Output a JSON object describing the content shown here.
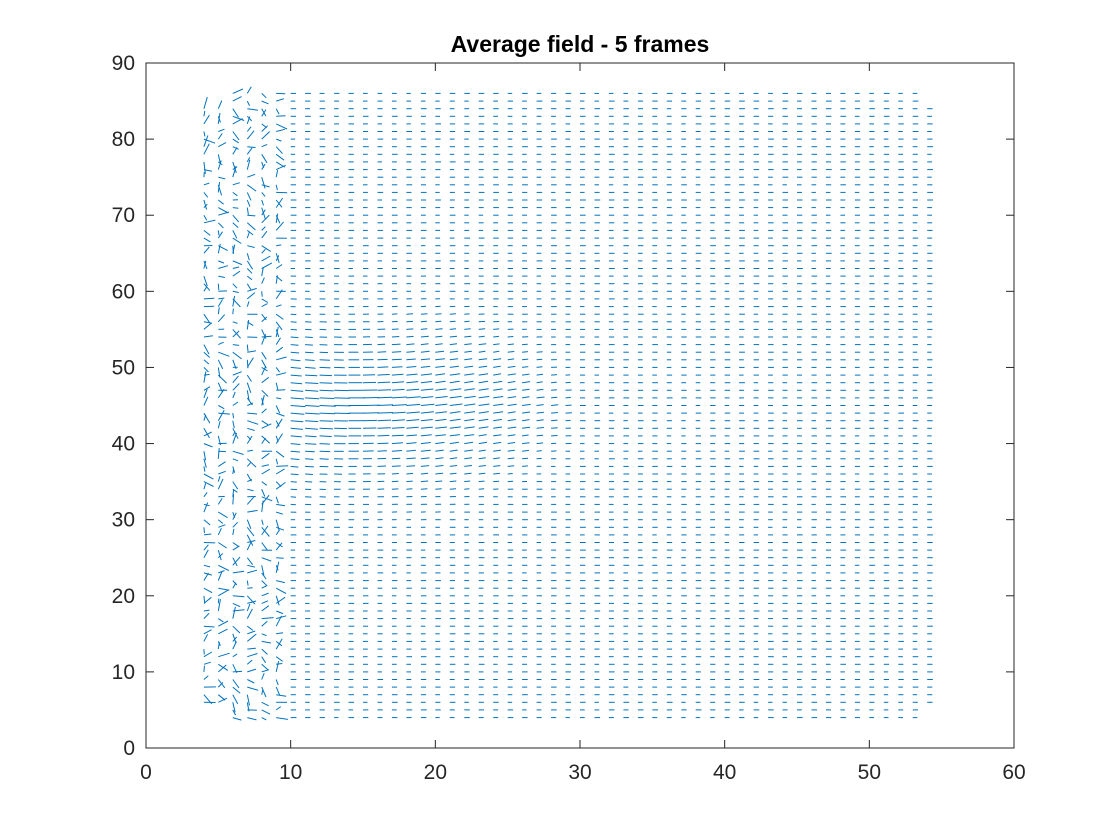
{
  "chart_data": {
    "type": "quiver",
    "title": "Average field - 5 frames",
    "xlabel": "",
    "ylabel": "",
    "xlim": [
      0,
      60
    ],
    "ylim": [
      0,
      90
    ],
    "xticks": [
      0,
      10,
      20,
      30,
      40,
      50,
      60
    ],
    "yticks": [
      0,
      10,
      20,
      30,
      40,
      50,
      60,
      70,
      80,
      90
    ],
    "grid": false,
    "legend": "none",
    "color": "#0072BD",
    "axis_color": "#262626",
    "grid_spacing": 1,
    "field_extent": {
      "x": [
        4,
        54.5
      ],
      "y": [
        4,
        86
      ]
    }
  }
}
